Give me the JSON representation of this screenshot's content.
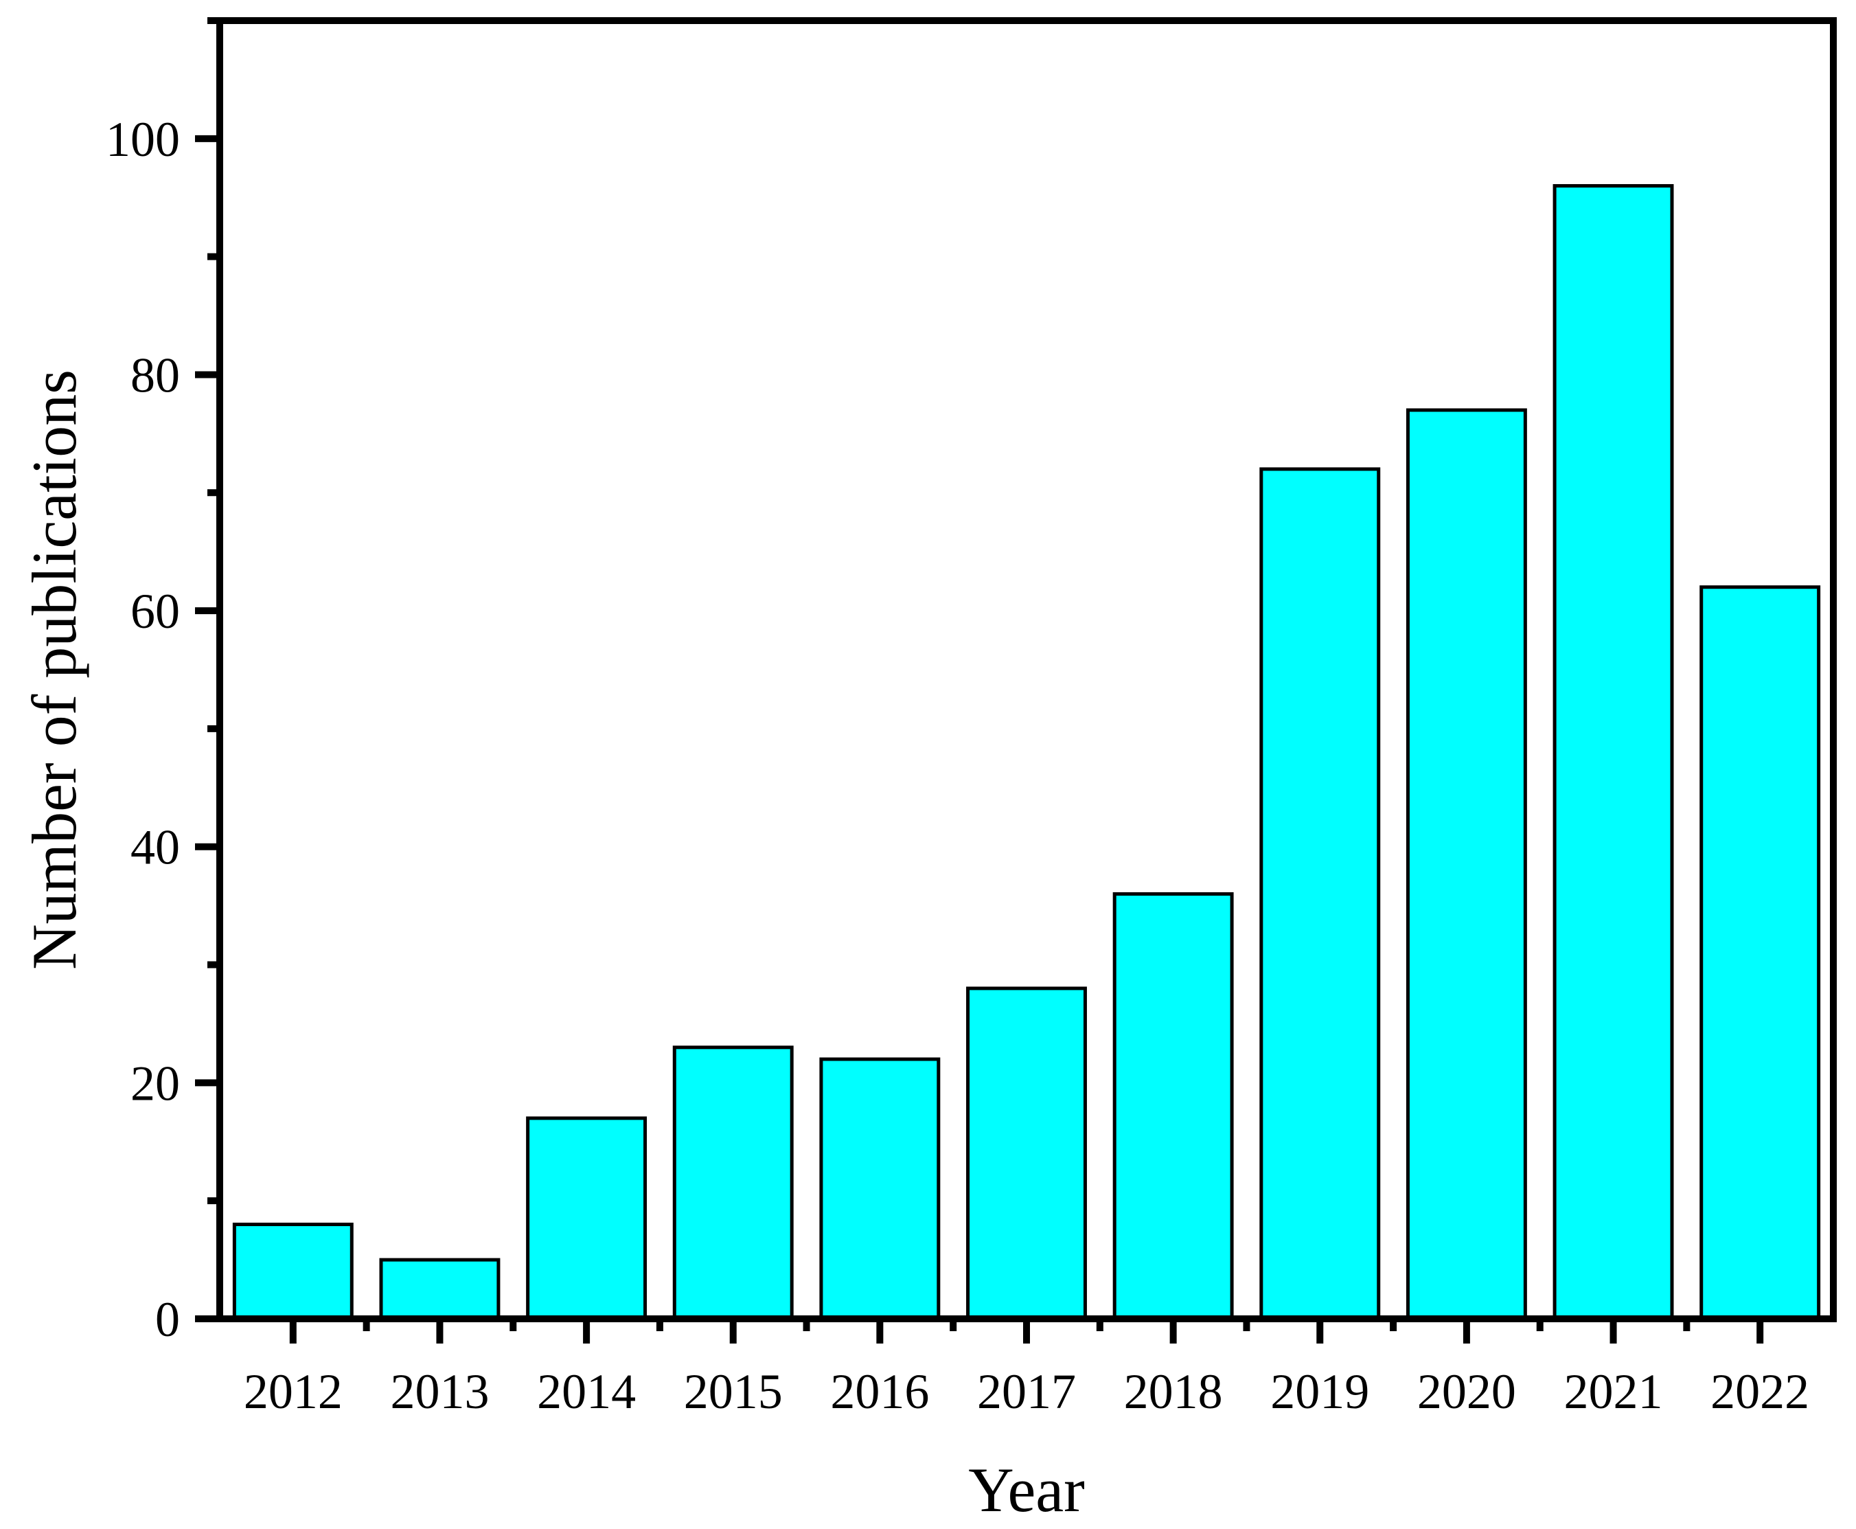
{
  "chart_data": {
    "type": "bar",
    "categories": [
      "2012",
      "2013",
      "2014",
      "2015",
      "2016",
      "2017",
      "2018",
      "2019",
      "2020",
      "2021",
      "2022"
    ],
    "values": [
      8,
      5,
      17,
      23,
      22,
      28,
      36,
      72,
      77,
      96,
      62
    ],
    "title": "",
    "xlabel": "Year",
    "ylabel": "Number of publications",
    "ylim": [
      0,
      110
    ],
    "yticks": [
      0,
      20,
      40,
      60,
      80,
      100
    ],
    "yticks_minor": [
      10,
      30,
      50,
      70,
      90,
      110
    ],
    "bar_color": "#00FFFF",
    "grid": false,
    "legend": "none"
  }
}
